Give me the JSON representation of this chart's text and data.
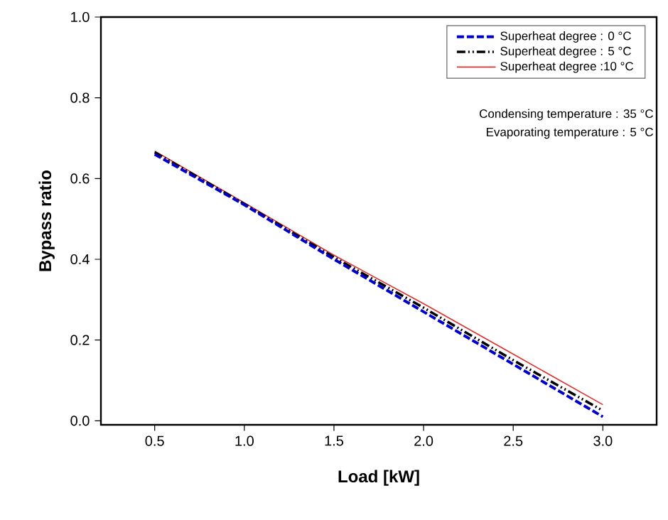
{
  "chart_data": {
    "type": "line",
    "xlabel": "Load [kW]",
    "ylabel": "Bypass ratio",
    "x": [
      0.5,
      1.0,
      1.5,
      2.0,
      2.5,
      3.0
    ],
    "series": [
      {
        "name": "Superheat degree : 0 °C",
        "color": "#0000cc",
        "line_style": "dashed",
        "values": [
          0.66,
          0.535,
          0.4,
          0.27,
          0.14,
          0.01
        ]
      },
      {
        "name": "Superheat degree : 5 °C",
        "color": "#000000",
        "line_style": "dashdotdotted",
        "values": [
          0.665,
          0.537,
          0.405,
          0.28,
          0.15,
          0.025
        ]
      },
      {
        "name": "Superheat degree :10 °C",
        "color": "#e03030",
        "line_style": "solid",
        "values": [
          0.668,
          0.54,
          0.41,
          0.29,
          0.165,
          0.04
        ]
      }
    ],
    "xlim": [
      0.2,
      3.3
    ],
    "ylim": [
      -0.01,
      1.0
    ],
    "xticks": [
      0.5,
      {
        "value": 1,
        "label": "1.0"
      },
      1.5,
      {
        "value": 2,
        "label": "2.0"
      },
      2.5,
      {
        "value": 3,
        "label": "3.0"
      }
    ],
    "yticks": [
      {
        "value": 0,
        "label": "0.0"
      },
      0.2,
      0.4,
      0.6,
      0.8,
      {
        "value": 1,
        "label": "1.0"
      }
    ],
    "legend": "top right",
    "grid": false,
    "marker": "none",
    "annotations": [
      "Condensing temperature : 35 °C",
      "Evaporating temperature : 5 °C"
    ]
  }
}
